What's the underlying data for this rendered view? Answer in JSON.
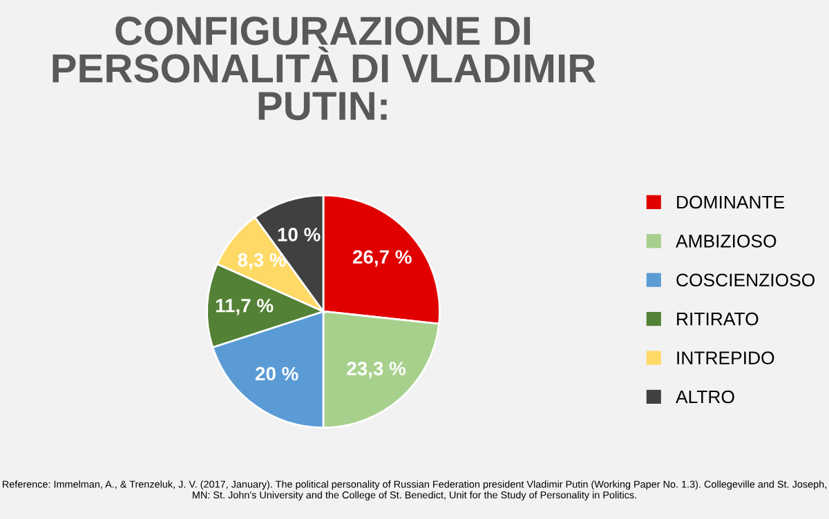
{
  "chart_data": {
    "type": "pie",
    "title": "CONFIGURAZIONE DI\nPERSONALITÀ DI VLADIMIR\nPUTIN:",
    "categories": [
      "DOMINANTE",
      "AMBIZIOSO",
      "COSCIENZIOSO",
      "RITIRATO",
      "INTREPIDO",
      "ALTRO"
    ],
    "values": [
      26.7,
      23.3,
      20,
      11.7,
      8.3,
      10
    ],
    "value_labels": [
      "26,7 %",
      "23,3 %",
      "20 %",
      "11,7 %",
      "8,3 %",
      "10 %"
    ],
    "colors": [
      "#e00000",
      "#a8d08d",
      "#5b9bd5",
      "#538135",
      "#ffd966",
      "#404040"
    ],
    "legend": "right",
    "annotations": [
      "Reference: Immelman, A., & Trenzeluk, J. V. (2017, January). The political personality of Russian Federation president Vladimir Putin (Working Paper No. 1.3). Collegeville and St. Joseph, MN: St. John's University and the College of St. Benedict, Unit for the Study of Personality in Politics."
    ]
  }
}
